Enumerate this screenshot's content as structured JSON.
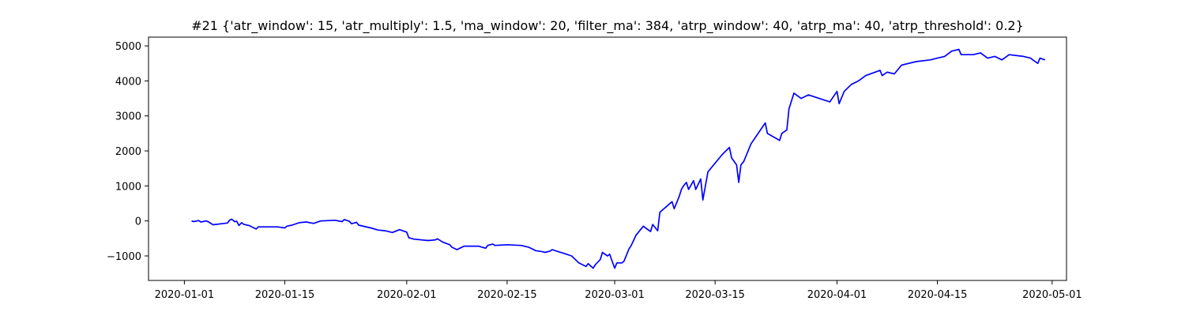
{
  "chart_data": {
    "type": "line",
    "title": "#21 {'atr_window': 15, 'atr_multiply': 1.5, 'ma_window': 20, 'filter_ma': 384, 'atrp_window': 40, 'atrp_ma': 40, 'atrp_threshold': 0.2}",
    "xlabel": "",
    "ylabel": "",
    "x_axis_type": "date",
    "xlim": [
      "2019-12-27",
      "2020-05-03"
    ],
    "ylim": [
      -1700,
      5250
    ],
    "xticks": [
      "2020-01-01",
      "2020-01-15",
      "2020-02-01",
      "2020-02-15",
      "2020-03-01",
      "2020-03-15",
      "2020-04-01",
      "2020-04-15",
      "2020-05-01"
    ],
    "yticks": [
      -1000,
      0,
      1000,
      2000,
      3000,
      4000,
      5000
    ],
    "grid": false,
    "line_color": "#0000ff",
    "series": [
      {
        "values": [
          [
            "2020-01-02",
            0
          ],
          [
            "2020-01-02",
            -20
          ],
          [
            "2020-01-03",
            10
          ],
          [
            "2020-01-03",
            -30
          ],
          [
            "2020-01-04",
            0
          ],
          [
            "2020-01-04",
            -20
          ],
          [
            "2020-01-05",
            -110
          ],
          [
            "2020-01-07",
            -60
          ],
          [
            "2020-01-07",
            20
          ],
          [
            "2020-01-07",
            50
          ],
          [
            "2020-01-08",
            -20
          ],
          [
            "2020-01-08",
            -10
          ],
          [
            "2020-01-08",
            -130
          ],
          [
            "2020-01-09",
            -50
          ],
          [
            "2020-01-09",
            -100
          ],
          [
            "2020-01-10",
            -130
          ],
          [
            "2020-01-11",
            -230
          ],
          [
            "2020-01-11",
            -170
          ],
          [
            "2020-01-14",
            -170
          ],
          [
            "2020-01-15",
            -200
          ],
          [
            "2020-01-15",
            -150
          ],
          [
            "2020-01-16",
            -120
          ],
          [
            "2020-01-17",
            -50
          ],
          [
            "2020-01-18",
            -30
          ],
          [
            "2020-01-19",
            -70
          ],
          [
            "2020-01-20",
            0
          ],
          [
            "2020-01-22",
            20
          ],
          [
            "2020-01-23",
            -20
          ],
          [
            "2020-01-23",
            40
          ],
          [
            "2020-01-24",
            -10
          ],
          [
            "2020-01-24",
            -80
          ],
          [
            "2020-01-25",
            -40
          ],
          [
            "2020-01-25",
            -120
          ],
          [
            "2020-01-27",
            -200
          ],
          [
            "2020-01-28",
            -260
          ],
          [
            "2020-01-29",
            -280
          ],
          [
            "2020-01-30",
            -330
          ],
          [
            "2020-01-31",
            -250
          ],
          [
            "2020-02-01",
            -320
          ],
          [
            "2020-02-01",
            -480
          ],
          [
            "2020-02-02",
            -520
          ],
          [
            "2020-02-04",
            -560
          ],
          [
            "2020-02-05",
            -540
          ],
          [
            "2020-02-05",
            -510
          ],
          [
            "2020-02-06",
            -600
          ],
          [
            "2020-02-07",
            -680
          ],
          [
            "2020-02-07",
            -750
          ],
          [
            "2020-02-08",
            -820
          ],
          [
            "2020-02-08",
            -790
          ],
          [
            "2020-02-09",
            -720
          ],
          [
            "2020-02-11",
            -720
          ],
          [
            "2020-02-12",
            -780
          ],
          [
            "2020-02-12",
            -700
          ],
          [
            "2020-02-13",
            -660
          ],
          [
            "2020-02-13",
            -700
          ],
          [
            "2020-02-15",
            -680
          ],
          [
            "2020-02-17",
            -700
          ],
          [
            "2020-02-18",
            -750
          ],
          [
            "2020-02-19",
            -850
          ],
          [
            "2020-02-20",
            -880
          ],
          [
            "2020-02-20",
            -900
          ],
          [
            "2020-02-21",
            -860
          ],
          [
            "2020-02-21",
            -820
          ],
          [
            "2020-02-22",
            -870
          ],
          [
            "2020-02-23",
            -930
          ],
          [
            "2020-02-24",
            -1000
          ],
          [
            "2020-02-25",
            -1200
          ],
          [
            "2020-02-26",
            -1300
          ],
          [
            "2020-02-26",
            -1220
          ],
          [
            "2020-02-27",
            -1350
          ],
          [
            "2020-02-27",
            -1250
          ],
          [
            "2020-02-28",
            -1100
          ],
          [
            "2020-02-28",
            -900
          ],
          [
            "2020-02-29",
            -1000
          ],
          [
            "2020-02-29",
            -950
          ],
          [
            "2020-03-01",
            -1350
          ],
          [
            "2020-03-01",
            -1200
          ],
          [
            "2020-03-02",
            -1200
          ],
          [
            "2020-03-02",
            -1150
          ],
          [
            "2020-03-03",
            -800
          ],
          [
            "2020-03-03",
            -700
          ],
          [
            "2020-03-04",
            -400
          ],
          [
            "2020-03-05",
            -150
          ],
          [
            "2020-03-05",
            -200
          ],
          [
            "2020-03-06",
            -300
          ],
          [
            "2020-03-06",
            -100
          ],
          [
            "2020-03-07",
            -280
          ],
          [
            "2020-03-07",
            250
          ],
          [
            "2020-03-09",
            550
          ],
          [
            "2020-03-09",
            350
          ],
          [
            "2020-03-10",
            700
          ],
          [
            "2020-03-10",
            900
          ],
          [
            "2020-03-10",
            1000
          ],
          [
            "2020-03-11",
            1100
          ],
          [
            "2020-03-11",
            900
          ],
          [
            "2020-03-12",
            1150
          ],
          [
            "2020-03-12",
            900
          ],
          [
            "2020-03-13",
            1200
          ],
          [
            "2020-03-13",
            600
          ],
          [
            "2020-03-14",
            1400
          ],
          [
            "2020-03-16",
            1900
          ],
          [
            "2020-03-17",
            2100
          ],
          [
            "2020-03-17",
            1800
          ],
          [
            "2020-03-18",
            1600
          ],
          [
            "2020-03-18",
            1100
          ],
          [
            "2020-03-18",
            1600
          ],
          [
            "2020-03-19",
            1700
          ],
          [
            "2020-03-20",
            2200
          ],
          [
            "2020-03-21",
            2500
          ],
          [
            "2020-03-22",
            2800
          ],
          [
            "2020-03-22",
            2500
          ],
          [
            "2020-03-24",
            2300
          ],
          [
            "2020-03-24",
            2500
          ],
          [
            "2020-03-25",
            2600
          ],
          [
            "2020-03-25",
            3200
          ],
          [
            "2020-03-26",
            3650
          ],
          [
            "2020-03-27",
            3500
          ],
          [
            "2020-03-28",
            3600
          ],
          [
            "2020-03-31",
            3400
          ],
          [
            "2020-04-01",
            3700
          ],
          [
            "2020-04-01",
            3350
          ],
          [
            "2020-04-02",
            3700
          ],
          [
            "2020-04-03",
            3900
          ],
          [
            "2020-04-04",
            4000
          ],
          [
            "2020-04-05",
            4150
          ],
          [
            "2020-04-07",
            4300
          ],
          [
            "2020-04-07",
            4150
          ],
          [
            "2020-04-08",
            4250
          ],
          [
            "2020-04-09",
            4200
          ],
          [
            "2020-04-10",
            4450
          ],
          [
            "2020-04-12",
            4550
          ],
          [
            "2020-04-14",
            4600
          ],
          [
            "2020-04-15",
            4650
          ],
          [
            "2020-04-16",
            4700
          ],
          [
            "2020-04-17",
            4850
          ],
          [
            "2020-04-18",
            4900
          ],
          [
            "2020-04-18",
            4750
          ],
          [
            "2020-04-20",
            4750
          ],
          [
            "2020-04-21",
            4800
          ],
          [
            "2020-04-22",
            4650
          ],
          [
            "2020-04-23",
            4700
          ],
          [
            "2020-04-24",
            4600
          ],
          [
            "2020-04-25",
            4750
          ],
          [
            "2020-04-27",
            4700
          ],
          [
            "2020-04-28",
            4650
          ],
          [
            "2020-04-28",
            4600
          ],
          [
            "2020-04-29",
            4500
          ],
          [
            "2020-04-29",
            4650
          ],
          [
            "2020-04-30",
            4600
          ]
        ]
      }
    ]
  }
}
